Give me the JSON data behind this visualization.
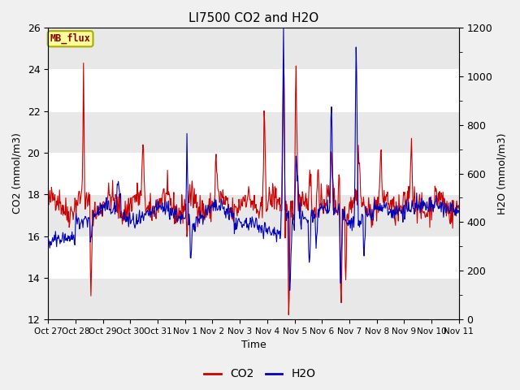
{
  "title": "LI7500 CO2 and H2O",
  "xlabel": "Time",
  "ylabel_left": "CO2 (mmol/m3)",
  "ylabel_right": "H2O (mmol/m3)",
  "ylim_left": [
    12,
    26
  ],
  "ylim_right": [
    0,
    1200
  ],
  "co2_color": "#cc0000",
  "h2o_color": "#0000bb",
  "fig_facecolor": "#f0f0f0",
  "plot_facecolor": "#ffffff",
  "band_colors": [
    "#e8e8e8",
    "#ffffff"
  ],
  "tag_text": "MB_flux",
  "tag_facecolor": "#ffff99",
  "tag_edgecolor": "#aaaa00",
  "tag_textcolor": "#880000",
  "xtick_labels": [
    "Oct 27",
    "Oct 28",
    "Oct 29",
    "Oct 30",
    "Oct 31",
    "Nov 1",
    "Nov 2",
    "Nov 3",
    "Nov 4",
    "Nov 5",
    "Nov 6",
    "Nov 7",
    "Nov 8",
    "Nov 9",
    "Nov 10",
    "Nov 11"
  ],
  "yticks_left": [
    12,
    14,
    16,
    18,
    20,
    22,
    24,
    26
  ],
  "yticks_right": [
    0,
    200,
    400,
    600,
    800,
    1000,
    1200
  ],
  "legend_co2": "CO2",
  "legend_h2o": "H2O",
  "line_width": 0.8
}
